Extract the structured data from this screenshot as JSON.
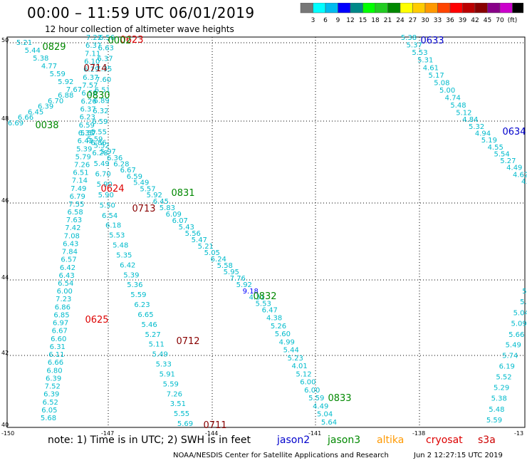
{
  "header": {
    "title": "00:00 – 11:59 UTC 06/01/2019",
    "subtitle": "12 hour collection of altimeter wave heights"
  },
  "legend": {
    "colors": [
      "#777777",
      "#00ffff",
      "#00bbee",
      "#0000ff",
      "#008888",
      "#00ff00",
      "#22cc22",
      "#008800",
      "#ffff00",
      "#ffcc00",
      "#ff9900",
      "#ff4400",
      "#ff0000",
      "#bb0000",
      "#880000",
      "#880088",
      "#cc00cc",
      "#000000"
    ],
    "labels": [
      "3",
      "6",
      "9",
      "12",
      "15",
      "18",
      "21",
      "24",
      "27",
      "30",
      "33",
      "36",
      "39",
      "42",
      "45",
      "70",
      "(ft)"
    ]
  },
  "axes": {
    "lat_labels": [
      "50",
      "48",
      "46",
      "44",
      "42",
      "40"
    ],
    "lon_labels": [
      "-150",
      "-147",
      "-144",
      "-141",
      "-138",
      "-13"
    ]
  },
  "footer": {
    "note": "note: 1) Time is in UTC; 2) SWH is in feet",
    "credit": "NOAA/NESDIS Center for Satellite Applications and Research",
    "generated": "Jun  2 12:27:15 UTC 2019",
    "satellites": [
      {
        "name": "jason2",
        "color": "#0000cc"
      },
      {
        "name": "jason3",
        "color": "#008800"
      },
      {
        "name": "altika",
        "color": "#ff9900"
      },
      {
        "name": "cryosat",
        "color": "#dd0000"
      },
      {
        "name": "s3a",
        "color": "#cc0000"
      }
    ]
  },
  "passes": [
    {
      "label": "0829",
      "color": "#008800"
    },
    {
      "label": "0623",
      "color": "#dd0000"
    },
    {
      "label": "0002",
      "color": "#008800"
    },
    {
      "label": "0714",
      "color": "#880000"
    },
    {
      "label": "0830",
      "color": "#008800"
    },
    {
      "label": "0038",
      "color": "#008800"
    },
    {
      "label": "0624",
      "color": "#dd0000"
    },
    {
      "label": "0831",
      "color": "#008800"
    },
    {
      "label": "0713",
      "color": "#880000"
    },
    {
      "label": "0832",
      "color": "#008800"
    },
    {
      "label": "0625",
      "color": "#dd0000"
    },
    {
      "label": "0712",
      "color": "#880000"
    },
    {
      "label": "0833",
      "color": "#008800"
    },
    {
      "label": "0711",
      "color": "#880000"
    },
    {
      "label": "0633",
      "color": "#0000cc"
    },
    {
      "label": "0634",
      "color": "#0000cc"
    }
  ],
  "swh_tracks": [
    [
      "5.21",
      "5.44",
      "5.38",
      "4.77",
      "5.59",
      "5.92",
      "7.67",
      "6.88",
      "6.70",
      "6.39",
      "6.45",
      "6.66",
      "6.69"
    ],
    [
      "7.22",
      "6.37",
      "7.11",
      "6.10",
      "6.29",
      "6.37",
      "7.57",
      "6.58",
      "6.26",
      "6.37",
      "6.23",
      "6.59",
      "6.35",
      "6.42",
      "5.39",
      "5.79",
      "7.26",
      "6.51",
      "7.14",
      "7.49",
      "6.79",
      "7.55",
      "6.58",
      "7.63",
      "7.42",
      "7.08",
      "6.43",
      "7.84",
      "6.57",
      "6.42",
      "6.43",
      "6.54",
      "6.00",
      "7.23",
      "6.86",
      "6.85",
      "6.97",
      "6.67",
      "6.60",
      "6.31",
      "6.11",
      "6.66",
      "6.80",
      "6.39",
      "7.52",
      "6.39",
      "6.52",
      "6.05",
      "5.68"
    ],
    [
      "6.56",
      "6.63",
      "6.37",
      "7.35",
      "7.60",
      "6.51",
      "6.89",
      "6.32",
      "6.59",
      "5.55",
      "6.86",
      "6.28",
      "5.49",
      "6.70",
      "5.90",
      "5.90",
      "5.50",
      "6.54",
      "6.18",
      "5.53",
      "5.48",
      "5.35",
      "6.42",
      "5.39",
      "5.36",
      "5.59",
      "6.23",
      "6.65",
      "5.46",
      "5.27",
      "5.11",
      "5.49",
      "5.33",
      "5.91",
      "5.59",
      "7.26",
      "3.51",
      "5.55",
      "5.69"
    ],
    [
      "5.57",
      "5.59",
      "5.52",
      "5.97",
      "6.36",
      "6.28",
      "6.67",
      "6.59",
      "5.49",
      "5.57",
      "5.92",
      "6.45",
      "5.83",
      "6.09",
      "6.07",
      "5.43",
      "5.56",
      "5.47",
      "5.21",
      "5.05",
      "6.24",
      "5.58",
      "5.95",
      "7.76",
      "5.92",
      "9.18",
      "4.31",
      "5.53",
      "6.47",
      "4.38",
      "5.26",
      "5.60",
      "4.99",
      "5.44",
      "5.23",
      "4.01",
      "5.12",
      "6.00",
      "6.00",
      "5.59",
      "4.49",
      "5.04",
      "5.64"
    ],
    [
      "5.38",
      "5.37",
      "5.53",
      "5.31",
      "4.61",
      "5.17",
      "5.08",
      "5.00",
      "4.74",
      "5.48",
      "5.12",
      "4.84",
      "5.32",
      "4.94",
      "5.19",
      "4.55",
      "5.54",
      "5.27",
      "4.49",
      "4.62",
      "4.5"
    ],
    [
      "5.",
      "5.",
      "5.04",
      "5.09",
      "5.66",
      "5.49",
      "5.74",
      "6.19",
      "5.52",
      "5.29",
      "5.38",
      "5.48",
      "5.59"
    ]
  ]
}
